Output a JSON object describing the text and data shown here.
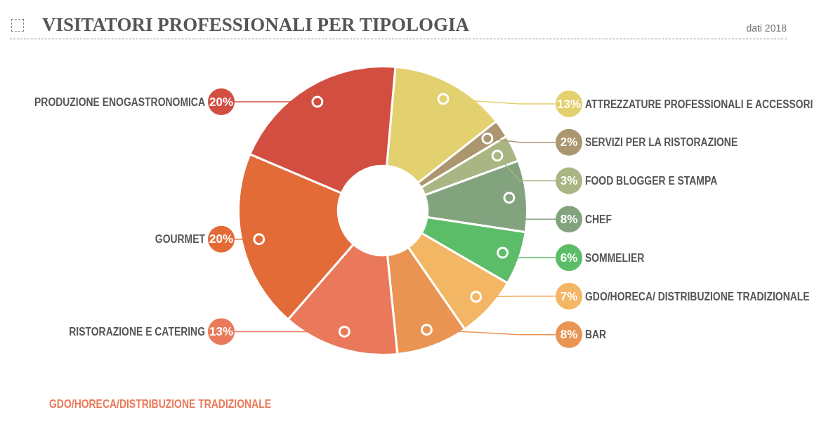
{
  "chart_data": {
    "type": "donut",
    "title": "VISITATORI PROFESSIONALI PER TIPOLOGIA",
    "subtitle": "dati 2018",
    "categories": [
      "ATTREZZATURE PROFESSIONALI E ACCESSORI",
      "SERVIZI PER LA RISTORAZIONE",
      "FOOD BLOGGER E STAMPA",
      "CHEF",
      "SOMMELIER",
      "GDO/HORECA/ DISTRIBUZIONE TRADIZIONALE",
      "BAR",
      "RISTORAZIONE E CATERING",
      "GOURMET",
      "PRODUZIONE ENOGASTRONOMICA"
    ],
    "values": [
      13,
      2,
      3,
      8,
      6,
      7,
      8,
      13,
      20,
      20
    ],
    "value_labels": [
      "13%",
      "2%",
      "3%",
      "8%",
      "6%",
      "7%",
      "8%",
      "13%",
      "20%",
      "20%"
    ],
    "colors": [
      "#e3d06e",
      "#ab9670",
      "#a9b683",
      "#83a37f",
      "#5cbd68",
      "#f3b664",
      "#ea9454",
      "#e9795a",
      "#e36b38",
      "#d24e41"
    ],
    "legend": "right",
    "annotations": [
      "GDO/HORECA/DISTRIBUZIONE TRADIZIONALE"
    ]
  }
}
